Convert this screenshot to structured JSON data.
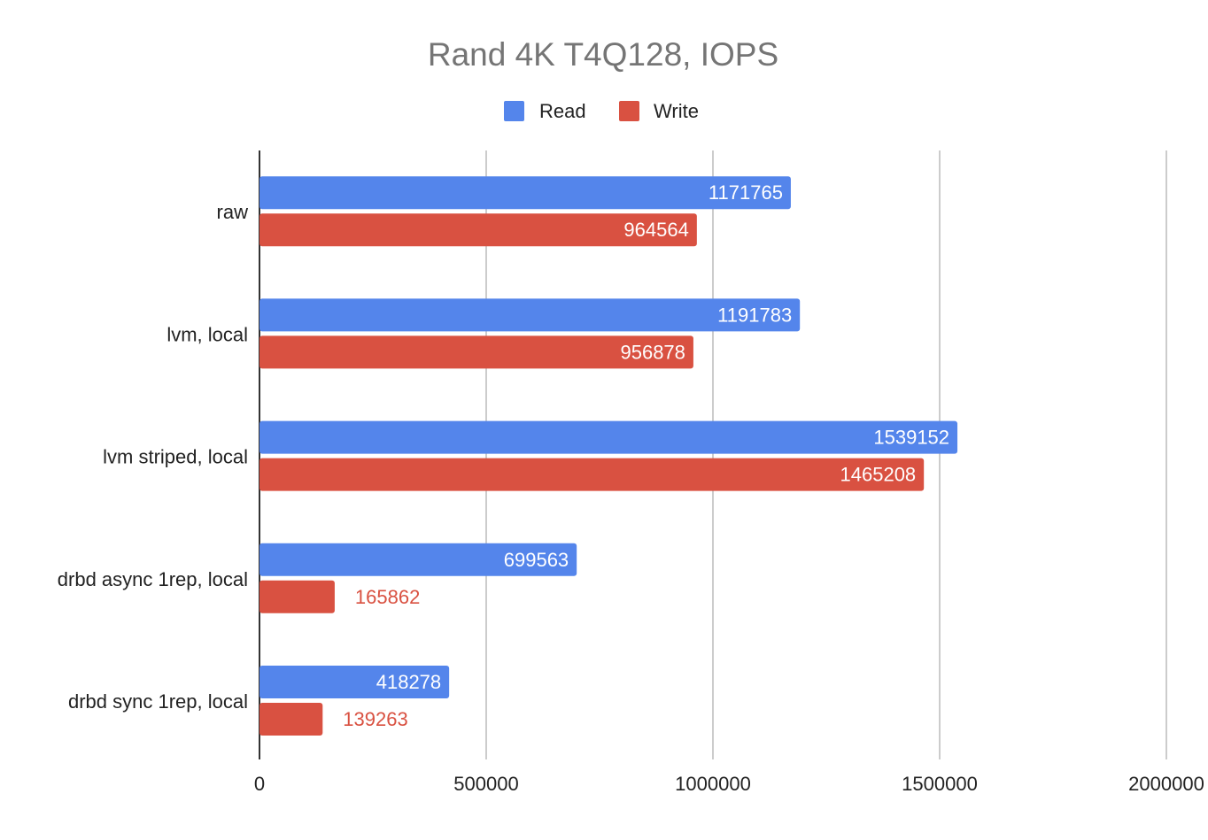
{
  "chart_data": {
    "type": "bar",
    "orientation": "horizontal",
    "title": "Rand 4K T4Q128, IOPS",
    "categories": [
      "raw",
      "lvm, local",
      "lvm striped, local",
      "drbd async 1rep, local",
      "drbd sync 1rep, local"
    ],
    "series": [
      {
        "name": "Read",
        "color": "#5485eb",
        "values": [
          1171765,
          1191783,
          1539152,
          699563,
          418278
        ]
      },
      {
        "name": "Write",
        "color": "#d95141",
        "values": [
          964564,
          956878,
          1465208,
          165862,
          139263
        ]
      }
    ],
    "xlim": [
      0,
      2000000
    ],
    "xticks": [
      "0",
      "500000",
      "1000000",
      "1500000",
      "2000000"
    ],
    "xlabel": "",
    "ylabel": "",
    "grid": true,
    "legend": "top",
    "data_labels": true
  }
}
